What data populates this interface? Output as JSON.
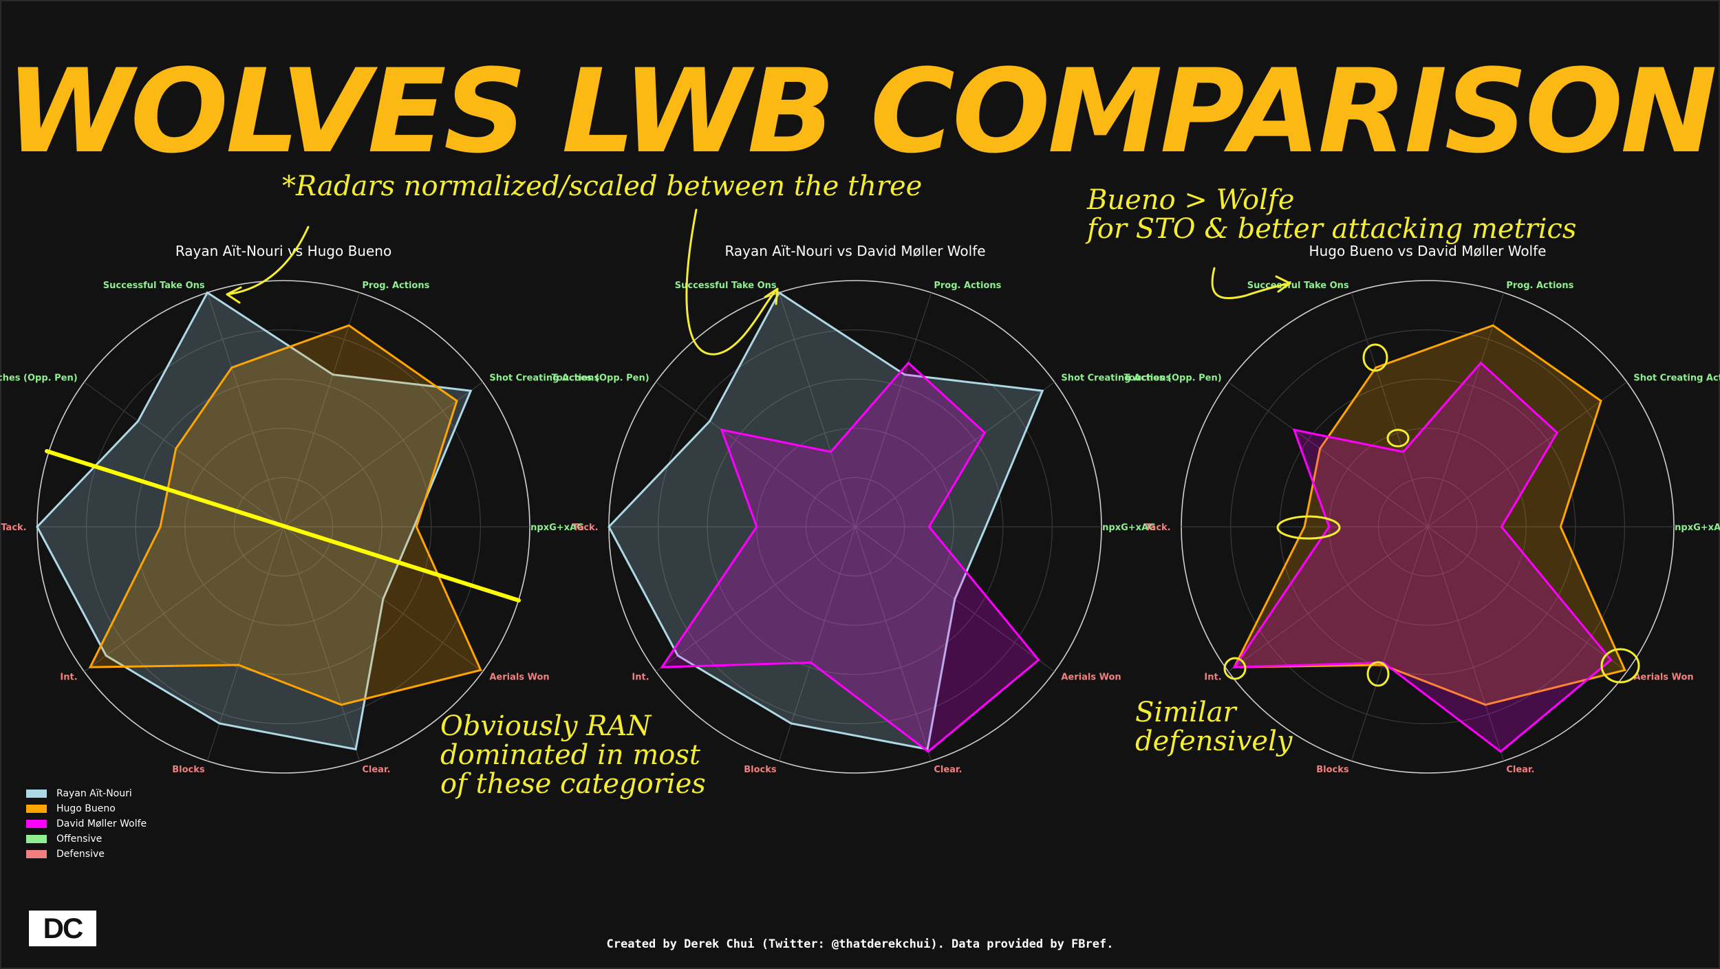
{
  "title": "WOLVES LWB COMPARISON",
  "credit": "Created by Derek Chui (Twitter: @thatderekchui). Data provided by FBref.",
  "logo_text": "DC",
  "colors": {
    "background": "#121212",
    "title": "#FDB913",
    "offensive": "#90EE90",
    "defensive": "#F08080",
    "annotation": "#f5ee30"
  },
  "annotations": [
    "*Radars normalized/scaled between the three",
    "Bueno > Wolfe\nfor STO & better attacking metrics",
    "Obviously RAN\ndominated in most\nof these categories",
    "Similar\ndefensively"
  ],
  "legend": [
    {
      "label": "Rayan Aït-Nouri",
      "color": "#ADD8E6"
    },
    {
      "label": "Hugo Bueno",
      "color": "#FFA500"
    },
    {
      "label": "David Møller Wolfe",
      "color": "#FF00FF"
    },
    {
      "label": "Offensive",
      "color": "#90EE90"
    },
    {
      "label": "Defensive",
      "color": "#F08080"
    }
  ],
  "chart_data": [
    {
      "type": "radar",
      "title": "Rayan Aït-Nouri vs Hugo Bueno",
      "categories": [
        "npxG+xAG",
        "Shot Creating Actions",
        "Prog. Actions",
        "Successful Take Ons",
        "Touches (Opp. Pen)",
        "Tack.",
        "Int.",
        "Blocks",
        "Clear.",
        "Aerials Won"
      ],
      "category_groups": [
        "Offensive",
        "Offensive",
        "Offensive",
        "Offensive",
        "Offensive",
        "Defensive",
        "Defensive",
        "Defensive",
        "Defensive",
        "Defensive"
      ],
      "rlim": [
        0,
        1
      ],
      "series": [
        {
          "name": "Rayan Aït-Nouri",
          "color": "#ADD8E6",
          "values": [
            0.53,
            0.94,
            0.65,
            1.0,
            0.73,
            1.0,
            0.89,
            0.84,
            0.95,
            0.5
          ]
        },
        {
          "name": "Hugo Bueno",
          "color": "#FFA500",
          "values": [
            0.54,
            0.87,
            0.86,
            0.68,
            0.54,
            0.5,
            0.97,
            0.59,
            0.76,
            0.99
          ]
        }
      ]
    },
    {
      "type": "radar",
      "title": "Rayan Aït-Nouri vs David Møller Wolfe",
      "categories": [
        "npxG+xAG",
        "Shot Creating Actions",
        "Prog. Actions",
        "Successful Take Ons",
        "Touches (Opp. Pen)",
        "Tack.",
        "Int.",
        "Blocks",
        "Clear.",
        "Aerials Won"
      ],
      "category_groups": [
        "Offensive",
        "Offensive",
        "Offensive",
        "Offensive",
        "Offensive",
        "Defensive",
        "Defensive",
        "Defensive",
        "Defensive",
        "Defensive"
      ],
      "rlim": [
        0,
        1
      ],
      "series": [
        {
          "name": "Rayan Aït-Nouri",
          "color": "#ADD8E6",
          "values": [
            0.53,
            0.94,
            0.65,
            1.0,
            0.73,
            1.0,
            0.89,
            0.84,
            0.95,
            0.5
          ]
        },
        {
          "name": "David Møller Wolfe",
          "color": "#FF00FF",
          "values": [
            0.3,
            0.65,
            0.7,
            0.32,
            0.67,
            0.4,
            0.97,
            0.58,
            0.96,
            0.92
          ]
        }
      ]
    },
    {
      "type": "radar",
      "title": "Hugo Bueno vs David Møller Wolfe",
      "categories": [
        "npxG+xAG",
        "Shot Creating Actions",
        "Prog. Actions",
        "Successful Take Ons",
        "Touches (Opp. Pen)",
        "Tack.",
        "Int.",
        "Blocks",
        "Clear.",
        "Aerials Won"
      ],
      "category_groups": [
        "Offensive",
        "Offensive",
        "Offensive",
        "Offensive",
        "Offensive",
        "Defensive",
        "Defensive",
        "Defensive",
        "Defensive",
        "Defensive"
      ],
      "rlim": [
        0,
        1
      ],
      "series": [
        {
          "name": "Hugo Bueno",
          "color": "#FFA500",
          "values": [
            0.54,
            0.87,
            0.86,
            0.68,
            0.54,
            0.5,
            0.97,
            0.59,
            0.76,
            0.99
          ]
        },
        {
          "name": "David Møller Wolfe",
          "color": "#FF00FF",
          "values": [
            0.3,
            0.65,
            0.7,
            0.32,
            0.67,
            0.4,
            0.97,
            0.58,
            0.96,
            0.92
          ]
        }
      ]
    }
  ]
}
